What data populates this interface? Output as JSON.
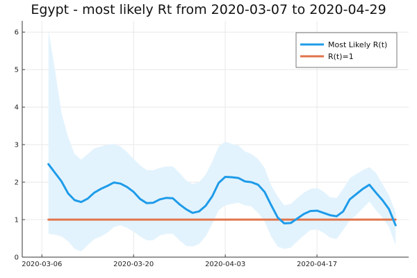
{
  "chart_data": {
    "type": "line",
    "title": "Egypt - most likely Rt from 2020-03-07 to 2020-04-29",
    "xlabel": "",
    "ylabel": "",
    "x_axis_type": "date",
    "xlim": [
      "2020-03-03",
      "2020-05-01"
    ],
    "ylim": [
      0,
      6.3
    ],
    "x_ticks": [
      "2020-03-06",
      "2020-03-20",
      "2020-04-03",
      "2020-04-17"
    ],
    "y_ticks": [
      0,
      1,
      2,
      3,
      4,
      5,
      6
    ],
    "grid": true,
    "legend_position": "top-right",
    "dates": [
      "2020-03-07",
      "2020-03-08",
      "2020-03-09",
      "2020-03-10",
      "2020-03-11",
      "2020-03-12",
      "2020-03-13",
      "2020-03-14",
      "2020-03-15",
      "2020-03-16",
      "2020-03-17",
      "2020-03-18",
      "2020-03-19",
      "2020-03-20",
      "2020-03-21",
      "2020-03-22",
      "2020-03-23",
      "2020-03-24",
      "2020-03-25",
      "2020-03-26",
      "2020-03-27",
      "2020-03-28",
      "2020-03-29",
      "2020-03-30",
      "2020-03-31",
      "2020-04-01",
      "2020-04-02",
      "2020-04-03",
      "2020-04-04",
      "2020-04-05",
      "2020-04-06",
      "2020-04-07",
      "2020-04-08",
      "2020-04-09",
      "2020-04-10",
      "2020-04-11",
      "2020-04-12",
      "2020-04-13",
      "2020-04-14",
      "2020-04-15",
      "2020-04-16",
      "2020-04-17",
      "2020-04-18",
      "2020-04-19",
      "2020-04-20",
      "2020-04-21",
      "2020-04-22",
      "2020-04-23",
      "2020-04-24",
      "2020-04-25",
      "2020-04-26",
      "2020-04-27",
      "2020-04-28",
      "2020-04-29"
    ],
    "series": [
      {
        "name": "Most Likely R(t)",
        "color": "#1e9be9",
        "values": [
          2.48,
          2.25,
          2.02,
          1.7,
          1.52,
          1.47,
          1.56,
          1.72,
          1.82,
          1.9,
          1.99,
          1.96,
          1.87,
          1.74,
          1.55,
          1.44,
          1.45,
          1.54,
          1.58,
          1.57,
          1.41,
          1.28,
          1.18,
          1.22,
          1.37,
          1.62,
          1.98,
          2.14,
          2.13,
          2.11,
          2.02,
          2.0,
          1.93,
          1.74,
          1.39,
          1.06,
          0.9,
          0.91,
          1.03,
          1.15,
          1.23,
          1.24,
          1.18,
          1.12,
          1.09,
          1.22,
          1.54,
          1.68,
          1.82,
          1.93,
          1.72,
          1.52,
          1.28,
          0.85
        ]
      },
      {
        "name": "R(t)=1",
        "color": "#e2734b",
        "values": [
          1,
          1,
          1,
          1,
          1,
          1,
          1,
          1,
          1,
          1,
          1,
          1,
          1,
          1,
          1,
          1,
          1,
          1,
          1,
          1,
          1,
          1,
          1,
          1,
          1,
          1,
          1,
          1,
          1,
          1,
          1,
          1,
          1,
          1,
          1,
          1,
          1,
          1,
          1,
          1,
          1,
          1,
          1,
          1,
          1,
          1,
          1,
          1,
          1,
          1,
          1,
          1,
          1,
          1
        ]
      }
    ],
    "band": {
      "color": "#e3f3fd",
      "upper": [
        6.05,
        5.0,
        3.85,
        3.2,
        2.75,
        2.6,
        2.75,
        2.9,
        2.95,
        3.0,
        3.02,
        2.95,
        2.8,
        2.62,
        2.45,
        2.32,
        2.32,
        2.38,
        2.42,
        2.42,
        2.25,
        2.05,
        1.95,
        2.0,
        2.2,
        2.55,
        2.95,
        3.08,
        3.02,
        2.98,
        2.82,
        2.75,
        2.62,
        2.38,
        1.92,
        1.62,
        1.38,
        1.42,
        1.58,
        1.72,
        1.82,
        1.85,
        1.75,
        1.6,
        1.58,
        1.82,
        2.1,
        2.22,
        2.32,
        2.4,
        2.25,
        1.95,
        1.65,
        1.2
      ],
      "lower": [
        0.62,
        0.6,
        0.55,
        0.42,
        0.22,
        0.15,
        0.32,
        0.48,
        0.55,
        0.65,
        0.8,
        0.85,
        0.78,
        0.68,
        0.55,
        0.45,
        0.45,
        0.58,
        0.62,
        0.62,
        0.45,
        0.3,
        0.28,
        0.35,
        0.55,
        0.88,
        1.25,
        1.38,
        1.42,
        1.45,
        1.38,
        1.35,
        1.18,
        0.95,
        0.55,
        0.28,
        0.22,
        0.25,
        0.42,
        0.58,
        0.72,
        0.74,
        0.65,
        0.52,
        0.48,
        0.72,
        0.98,
        1.12,
        1.3,
        1.48,
        1.25,
        1.05,
        0.8,
        0.32
      ]
    }
  }
}
